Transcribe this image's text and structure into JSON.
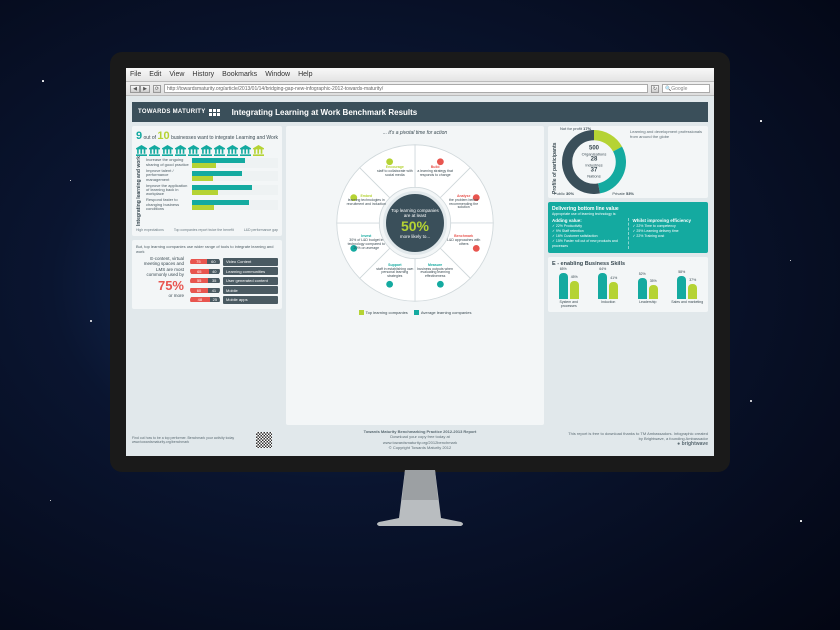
{
  "browser": {
    "menus": [
      "File",
      "Edit",
      "View",
      "History",
      "Bookmarks",
      "Window",
      "Help"
    ],
    "url": "http://towardsmaturity.org/article/2013/01/14/bridging-gap-new-infographic-2012-towards-maturity/",
    "search_placeholder": "Google"
  },
  "header": {
    "brand": "TOWARDS MATURITY",
    "title": "Integrating Learning at Work Benchmark Results"
  },
  "headline": {
    "pre": "9",
    "mid": "out of",
    "num": "10",
    "post": "businesses want to integrate Learning and Work",
    "bank_count": 10,
    "highlight_index": 9,
    "color_on": "#14aaa0",
    "color_off": "#b5d334"
  },
  "hbars": {
    "section_label": "Integrating learning and work",
    "rows": [
      {
        "label": "Increase the ongoing sharing of good practice",
        "v1": 62,
        "v2": 28
      },
      {
        "label": "Improve talent / performance management",
        "v1": 58,
        "v2": 24
      },
      {
        "label": "Improve the application of learning back in workplace",
        "v1": 70,
        "v2": 30
      },
      {
        "label": "Respond faster to changing business conditions",
        "v1": 66,
        "v2": 26
      }
    ],
    "color1": "#14aaa0",
    "color2": "#b5d334",
    "xcaps": [
      "High expectations",
      "Top companies report twice the benefit",
      "L&D performance gap"
    ]
  },
  "usage": {
    "lead": "But, top learning companies use wider range of tools to integrate learning and work",
    "intro": "E-content, virtual meeting spaces and LMS are most commonly used by",
    "pct": "75%",
    "pct_suffix": "or more",
    "rows": [
      {
        "a": 75,
        "b": 60,
        "label": "Video Content"
      },
      {
        "a": 65,
        "b": 40,
        "label": "Learning communities"
      },
      {
        "a": 55,
        "b": 35,
        "label": "User generated content"
      },
      {
        "a": 60,
        "b": 41,
        "label": "Mobile"
      },
      {
        "a": 48,
        "b": 25,
        "label": "Mobile apps"
      }
    ],
    "colors": {
      "a": "#e8554f",
      "b": "#4a5a62"
    }
  },
  "wheel": {
    "arc_note": "... it's a pivotal time for action",
    "hub_top": "Top learning companies are at least",
    "hub_pct": "50%",
    "hub_bottom": "more likely to...",
    "segments": [
      {
        "bold": "Build",
        "text": "a learning strategy that responds to change",
        "color": "#e8554f"
      },
      {
        "bold": "Analyse",
        "text": "the problem before recommending the solution",
        "color": "#e8554f"
      },
      {
        "bold": "Benchmark",
        "text": "L&D approaches with others",
        "color": "#e8554f"
      },
      {
        "bold": "Measure",
        "text": "business outputs when evaluating learning effectiveness",
        "color": "#14aaa0"
      },
      {
        "bold": "Support",
        "text": "staff in establishing own personal learning strategies",
        "color": "#14aaa0"
      },
      {
        "bold": "Invest",
        "text": "30% of L&D budget in technology compared to 20% on average",
        "color": "#14aaa0"
      },
      {
        "bold": "Embed",
        "text": "learning technologies in recruitment and induction",
        "color": "#b5d334"
      },
      {
        "bold": "Encourage",
        "text": "staff to collaborate with social media",
        "color": "#b5d334"
      }
    ],
    "legend": [
      {
        "color": "#b5d334",
        "label": "Top learning companies"
      },
      {
        "color": "#14aaa0",
        "label": "Average learning companies"
      }
    ]
  },
  "profile": {
    "section_label": "Profile of participants",
    "note": "Learning and development professionals from around the globe",
    "slices": [
      {
        "label": "Not for profit",
        "pct": 17,
        "color": "#b5d334"
      },
      {
        "label": "Public",
        "pct": 30,
        "color": "#14aaa0"
      },
      {
        "label": "Private",
        "pct": 53,
        "color": "#3a4f5a"
      }
    ],
    "center": {
      "orgs": "500",
      "orgs_l": "Organisations",
      "ind": "28",
      "ind_l": "Industries",
      "nat": "37",
      "nat_l": "Nations"
    }
  },
  "value": {
    "hd": "Delivering bottom line value",
    "sub": "Appropriate use of learning technology is:",
    "left_hd": "Adding value:",
    "left": [
      "22% Productivity",
      "9% Staff retention",
      "16% Customer satisfaction",
      "15% Faster roll out of new products and processes"
    ],
    "right_hd": "Whilst improving efficiency",
    "right": [
      "22% Time to competency",
      "25% Learning delivery time",
      "22% Training cost"
    ]
  },
  "skills": {
    "hd": "E - enabling Business Skills",
    "pairs": [
      {
        "a": 65,
        "b": 45,
        "label": "System and processes"
      },
      {
        "a": 64,
        "b": 41,
        "label": "Induction"
      },
      {
        "a": 52,
        "b": 35,
        "label": "Leadership"
      },
      {
        "a": 58,
        "b": 37,
        "label": "Sales and marketing"
      }
    ],
    "colors": {
      "a": "#14aaa0",
      "b": "#b5d334"
    }
  },
  "footer": {
    "find": "Find out how to be a top performer. Benchmark your activity today www.towardsmaturity.org/benchmark",
    "credit_title": "Towards Maturity Benchmarking Practice 2012-2013 Report",
    "credit_lines": [
      "Download your copy free today at",
      "www.towardsmaturity.org/2012benchmark",
      "© Copyright Towards Maturity 2012"
    ],
    "right_note": "This report is free to download thanks to TM Ambassadors. Infographic created by Brightwave, a founding Ambassador",
    "brightwave": "brightwave"
  },
  "colors": {
    "teal": "#14aaa0",
    "lime": "#b5d334",
    "red": "#e8554f",
    "slate": "#3a4f5a",
    "panel": "#f3f6f7"
  }
}
